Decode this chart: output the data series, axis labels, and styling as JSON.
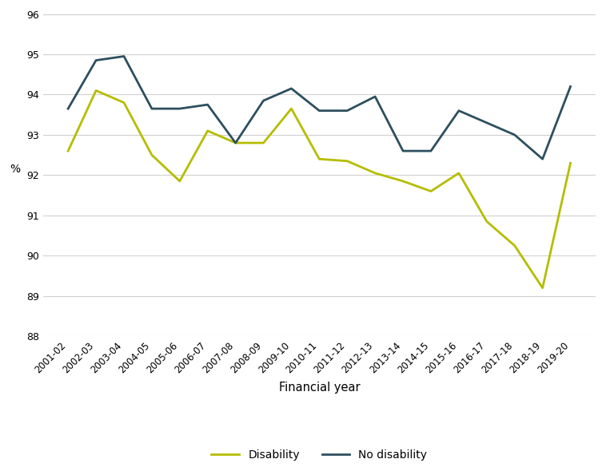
{
  "years": [
    "2001-02",
    "2002-03",
    "2003-04",
    "2004-05",
    "2005-06",
    "2006-07",
    "2007-08",
    "2008-09",
    "2009-10",
    "2010-11",
    "2011-12",
    "2012-13",
    "2013-14",
    "2014-15",
    "2015-16",
    "2016-17",
    "2017-18",
    "2018-19",
    "2019-20"
  ],
  "disability": [
    92.6,
    94.1,
    93.8,
    92.5,
    91.85,
    93.1,
    92.8,
    92.8,
    93.65,
    92.4,
    92.35,
    92.05,
    91.85,
    91.6,
    92.05,
    90.85,
    90.25,
    89.2,
    92.3
  ],
  "no_disability": [
    93.65,
    94.85,
    94.95,
    93.65,
    93.65,
    93.75,
    92.8,
    93.85,
    94.15,
    93.6,
    93.6,
    93.95,
    92.6,
    92.6,
    93.6,
    93.3,
    93.0,
    92.4,
    94.2
  ],
  "disability_color": "#b5bd00",
  "no_disability_color": "#2d4f5e",
  "xlabel": "Financial year",
  "ylabel": "%",
  "ylim": [
    88,
    96
  ],
  "yticks": [
    88,
    89,
    90,
    91,
    92,
    93,
    94,
    95,
    96
  ],
  "legend_disability": "Disability",
  "legend_no_disability": "No disability",
  "line_width": 2.0,
  "background_color": "#ffffff",
  "grid_color": "#d0d0d0"
}
